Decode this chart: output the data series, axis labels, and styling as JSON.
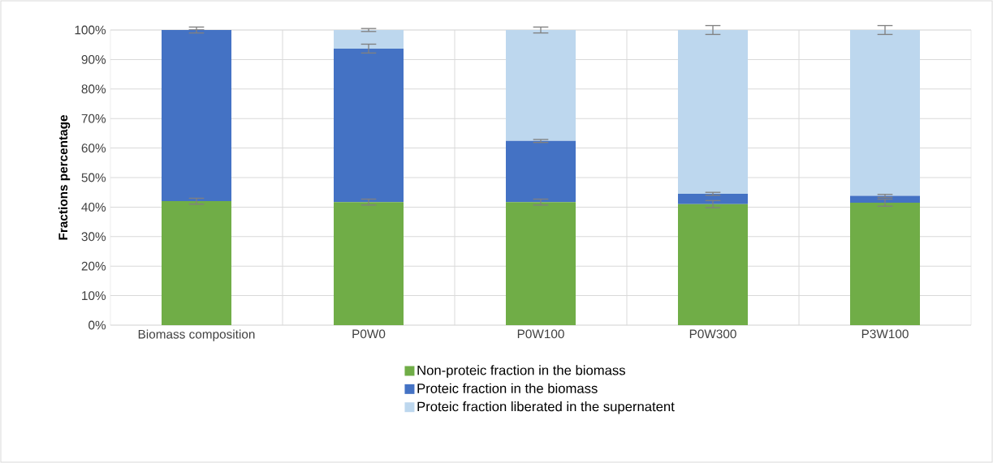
{
  "chart_data": {
    "type": "bar",
    "stacked": true,
    "ylabel": "Fractions percentage",
    "categories": [
      "Biomass composition",
      "P0W0",
      "P0W100",
      "P0W300",
      "P3W100"
    ],
    "series": [
      {
        "name": "Non-proteic fraction in the biomass",
        "color": "#70ad47",
        "values": [
          42,
          41.7,
          41.7,
          41,
          41.5
        ],
        "errors": [
          1,
          1,
          1,
          1.2,
          1.2
        ]
      },
      {
        "name": "Proteic fraction in the biomass",
        "color": "#4472c4",
        "values": [
          58,
          52,
          20.7,
          3.5,
          2.3
        ],
        "errors": [
          1,
          1.5,
          0.5,
          0.5,
          0.5
        ]
      },
      {
        "name": "Proteic fraction liberated in the supernatent",
        "color": "#bdd7ee",
        "values": [
          0,
          6.3,
          37.6,
          55.5,
          56.2
        ],
        "errors": [
          null,
          0.5,
          1,
          1.5,
          1.5
        ]
      }
    ],
    "ylim": [
      0,
      100
    ],
    "yticks": [
      {
        "value": 0,
        "label": "0%"
      },
      {
        "value": 10,
        "label": "10%"
      },
      {
        "value": 20,
        "label": "20%"
      },
      {
        "value": 30,
        "label": "30%"
      },
      {
        "value": 40,
        "label": "40%"
      },
      {
        "value": 50,
        "label": "50%"
      },
      {
        "value": 60,
        "label": "60%"
      },
      {
        "value": 70,
        "label": "70%"
      },
      {
        "value": 80,
        "label": "80%"
      },
      {
        "value": 90,
        "label": "90%"
      },
      {
        "value": 100,
        "label": "100%"
      }
    ],
    "grid": true,
    "legend": "bottom"
  }
}
